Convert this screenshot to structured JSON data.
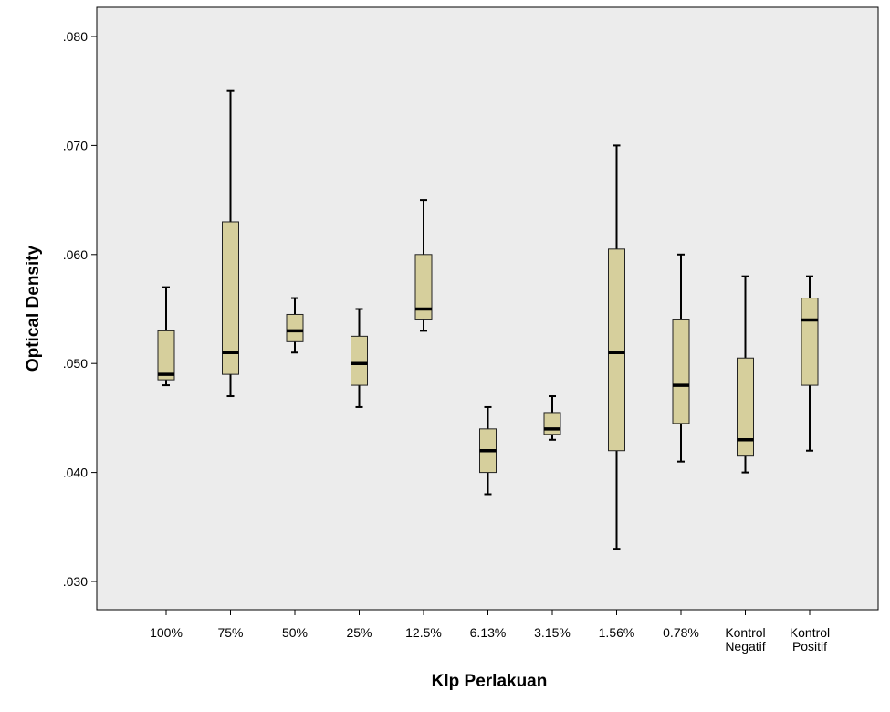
{
  "chart_data": {
    "type": "boxplot",
    "xlabel": "Klp Perlakuan",
    "ylabel": "Optical Density",
    "ylim": [
      0.027,
      0.083
    ],
    "y_ticks": [
      0.03,
      0.04,
      0.05,
      0.06,
      0.07,
      0.08
    ],
    "y_tick_labels": [
      ".030",
      ".040",
      ".050",
      ".060",
      ".070",
      ".080"
    ],
    "grid": false,
    "colors": {
      "plot_background": "#ececec",
      "box_fill": "#d6cf9c",
      "box_stroke": "#222222",
      "median": "#000000"
    },
    "categories": [
      [
        "100%"
      ],
      [
        "75%"
      ],
      [
        "50%"
      ],
      [
        "25%"
      ],
      [
        "12.5%"
      ],
      [
        "6.13%"
      ],
      [
        "3.15%"
      ],
      [
        "1.56%"
      ],
      [
        "0.78%"
      ],
      [
        "Kontrol",
        "Negatif"
      ],
      [
        "Kontrol",
        "Positif"
      ]
    ],
    "boxes": [
      {
        "min": 0.048,
        "q1": 0.0485,
        "median": 0.049,
        "q3": 0.053,
        "max": 0.057
      },
      {
        "min": 0.047,
        "q1": 0.049,
        "median": 0.051,
        "q3": 0.063,
        "max": 0.075
      },
      {
        "min": 0.051,
        "q1": 0.052,
        "median": 0.053,
        "q3": 0.0545,
        "max": 0.056
      },
      {
        "min": 0.046,
        "q1": 0.048,
        "median": 0.05,
        "q3": 0.0525,
        "max": 0.055
      },
      {
        "min": 0.053,
        "q1": 0.054,
        "median": 0.055,
        "q3": 0.06,
        "max": 0.065
      },
      {
        "min": 0.038,
        "q1": 0.04,
        "median": 0.042,
        "q3": 0.044,
        "max": 0.046
      },
      {
        "min": 0.043,
        "q1": 0.0435,
        "median": 0.044,
        "q3": 0.0455,
        "max": 0.047
      },
      {
        "min": 0.033,
        "q1": 0.042,
        "median": 0.051,
        "q3": 0.0605,
        "max": 0.07
      },
      {
        "min": 0.041,
        "q1": 0.0445,
        "median": 0.048,
        "q3": 0.054,
        "max": 0.06
      },
      {
        "min": 0.04,
        "q1": 0.0415,
        "median": 0.043,
        "q3": 0.0505,
        "max": 0.058
      },
      {
        "min": 0.042,
        "q1": 0.048,
        "median": 0.054,
        "q3": 0.056,
        "max": 0.058
      }
    ]
  }
}
